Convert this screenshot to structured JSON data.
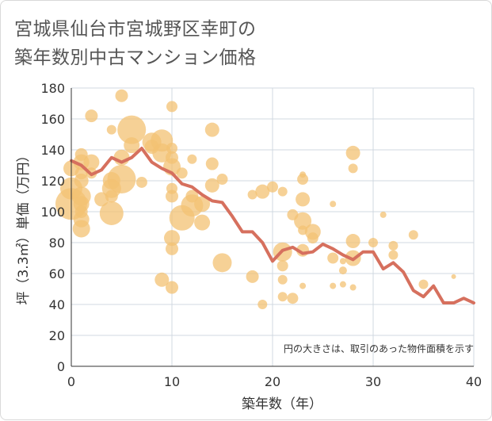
{
  "title_lines": [
    "宮城県仙台市宮城野区幸町の",
    "築年数別中古マンション価格"
  ],
  "chart_data": {
    "type": "scatter",
    "title": "宮城県仙台市宮城野区幸町の築年数別中古マンション価格",
    "xlabel": "築年数（年）",
    "ylabel": "坪（3.3㎡）単価（万円）",
    "xlim": [
      0,
      40
    ],
    "ylim": [
      0,
      180
    ],
    "xticks": [
      0,
      10,
      20,
      30,
      40
    ],
    "yticks": [
      0,
      20,
      40,
      60,
      80,
      100,
      120,
      140,
      160,
      180
    ],
    "grid": true,
    "annotation": "円の大きさは、取引のあった物件面積を示す",
    "colors": {
      "bubble_fill": "#f3c173",
      "bubble_opacity": 0.75,
      "line": "#d6705e",
      "grid": "#d0d8e0"
    },
    "bubbles": [
      {
        "x": 0,
        "y": 115,
        "size": 14
      },
      {
        "x": 0,
        "y": 105,
        "size": 20
      },
      {
        "x": 0,
        "y": 128,
        "size": 10
      },
      {
        "x": 1,
        "y": 137,
        "size": 8
      },
      {
        "x": 1,
        "y": 132,
        "size": 10
      },
      {
        "x": 1,
        "y": 125,
        "size": 8
      },
      {
        "x": 1,
        "y": 120,
        "size": 9
      },
      {
        "x": 1,
        "y": 110,
        "size": 12
      },
      {
        "x": 1,
        "y": 105,
        "size": 10
      },
      {
        "x": 1,
        "y": 100,
        "size": 8
      },
      {
        "x": 1,
        "y": 95,
        "size": 10
      },
      {
        "x": 1,
        "y": 89,
        "size": 11
      },
      {
        "x": 2,
        "y": 162,
        "size": 8
      },
      {
        "x": 2,
        "y": 132,
        "size": 10
      },
      {
        "x": 2,
        "y": 125,
        "size": 7
      },
      {
        "x": 3,
        "y": 108,
        "size": 9
      },
      {
        "x": 4,
        "y": 153,
        "size": 6
      },
      {
        "x": 4,
        "y": 120,
        "size": 11
      },
      {
        "x": 4,
        "y": 115,
        "size": 12
      },
      {
        "x": 4,
        "y": 110,
        "size": 8
      },
      {
        "x": 4,
        "y": 99,
        "size": 15
      },
      {
        "x": 5,
        "y": 175,
        "size": 8
      },
      {
        "x": 5,
        "y": 135,
        "size": 10
      },
      {
        "x": 5,
        "y": 121,
        "size": 18
      },
      {
        "x": 6,
        "y": 153,
        "size": 18
      },
      {
        "x": 6,
        "y": 143,
        "size": 10
      },
      {
        "x": 7,
        "y": 119,
        "size": 7
      },
      {
        "x": 8,
        "y": 145,
        "size": 12
      },
      {
        "x": 8,
        "y": 142,
        "size": 9
      },
      {
        "x": 9,
        "y": 146,
        "size": 14
      },
      {
        "x": 9,
        "y": 138,
        "size": 12
      },
      {
        "x": 9,
        "y": 56,
        "size": 9
      },
      {
        "x": 10,
        "y": 168,
        "size": 7
      },
      {
        "x": 10,
        "y": 141,
        "size": 7
      },
      {
        "x": 10,
        "y": 135,
        "size": 8
      },
      {
        "x": 10,
        "y": 129,
        "size": 11
      },
      {
        "x": 10,
        "y": 115,
        "size": 7
      },
      {
        "x": 10,
        "y": 110,
        "size": 8
      },
      {
        "x": 10,
        "y": 83,
        "size": 10
      },
      {
        "x": 10,
        "y": 76,
        "size": 8
      },
      {
        "x": 10,
        "y": 51,
        "size": 8
      },
      {
        "x": 11,
        "y": 125,
        "size": 7
      },
      {
        "x": 11,
        "y": 96,
        "size": 16
      },
      {
        "x": 12,
        "y": 134,
        "size": 6
      },
      {
        "x": 12,
        "y": 110,
        "size": 8
      },
      {
        "x": 12,
        "y": 104,
        "size": 14
      },
      {
        "x": 13,
        "y": 105,
        "size": 10
      },
      {
        "x": 13,
        "y": 93,
        "size": 10
      },
      {
        "x": 14,
        "y": 153,
        "size": 9
      },
      {
        "x": 14,
        "y": 131,
        "size": 8
      },
      {
        "x": 14,
        "y": 117,
        "size": 9
      },
      {
        "x": 15,
        "y": 121,
        "size": 7
      },
      {
        "x": 15,
        "y": 67,
        "size": 12
      },
      {
        "x": 18,
        "y": 111,
        "size": 6
      },
      {
        "x": 18,
        "y": 58,
        "size": 8
      },
      {
        "x": 19,
        "y": 113,
        "size": 9
      },
      {
        "x": 19,
        "y": 40,
        "size": 6
      },
      {
        "x": 20,
        "y": 116,
        "size": 7
      },
      {
        "x": 21,
        "y": 113,
        "size": 6
      },
      {
        "x": 21,
        "y": 74,
        "size": 12
      },
      {
        "x": 21,
        "y": 65,
        "size": 7
      },
      {
        "x": 21,
        "y": 56,
        "size": 6
      },
      {
        "x": 21,
        "y": 45,
        "size": 6
      },
      {
        "x": 22,
        "y": 98,
        "size": 7
      },
      {
        "x": 22,
        "y": 44,
        "size": 7
      },
      {
        "x": 23,
        "y": 124,
        "size": 4
      },
      {
        "x": 23,
        "y": 121,
        "size": 7
      },
      {
        "x": 23,
        "y": 108,
        "size": 9
      },
      {
        "x": 23,
        "y": 94,
        "size": 11
      },
      {
        "x": 23,
        "y": 88,
        "size": 6
      },
      {
        "x": 23,
        "y": 75,
        "size": 8
      },
      {
        "x": 23,
        "y": 52,
        "size": 4
      },
      {
        "x": 24,
        "y": 87,
        "size": 10
      },
      {
        "x": 24,
        "y": 83,
        "size": 7
      },
      {
        "x": 26,
        "y": 105,
        "size": 4
      },
      {
        "x": 26,
        "y": 70,
        "size": 7
      },
      {
        "x": 26,
        "y": 52,
        "size": 4
      },
      {
        "x": 27,
        "y": 68,
        "size": 4
      },
      {
        "x": 27,
        "y": 62,
        "size": 5
      },
      {
        "x": 27,
        "y": 53,
        "size": 4
      },
      {
        "x": 28,
        "y": 138,
        "size": 9
      },
      {
        "x": 28,
        "y": 128,
        "size": 6
      },
      {
        "x": 28,
        "y": 81,
        "size": 9
      },
      {
        "x": 28,
        "y": 70,
        "size": 10
      },
      {
        "x": 28,
        "y": 51,
        "size": 4
      },
      {
        "x": 30,
        "y": 80,
        "size": 6
      },
      {
        "x": 31,
        "y": 98,
        "size": 4
      },
      {
        "x": 32,
        "y": 78,
        "size": 6
      },
      {
        "x": 32,
        "y": 72,
        "size": 6
      },
      {
        "x": 34,
        "y": 85,
        "size": 6
      },
      {
        "x": 35,
        "y": 53,
        "size": 6
      },
      {
        "x": 38,
        "y": 58,
        "size": 3
      }
    ],
    "line": {
      "x": [
        0,
        1,
        2,
        3,
        4,
        5,
        6,
        7,
        8,
        9,
        10,
        11,
        12,
        13,
        14,
        15,
        16,
        17,
        18,
        19,
        20,
        21,
        22,
        23,
        24,
        25,
        26,
        27,
        28,
        29,
        30,
        31,
        32,
        33,
        34,
        35,
        36,
        37,
        38,
        39,
        40
      ],
      "y": [
        133,
        130,
        124,
        127,
        135,
        132,
        135,
        141,
        132,
        128,
        125,
        118,
        116,
        111,
        107,
        106,
        97,
        87,
        87,
        80,
        68,
        75,
        77,
        73,
        74,
        79,
        76,
        72,
        69,
        74,
        74,
        63,
        67,
        61,
        49,
        45,
        52,
        41,
        41,
        44,
        41
      ]
    }
  }
}
